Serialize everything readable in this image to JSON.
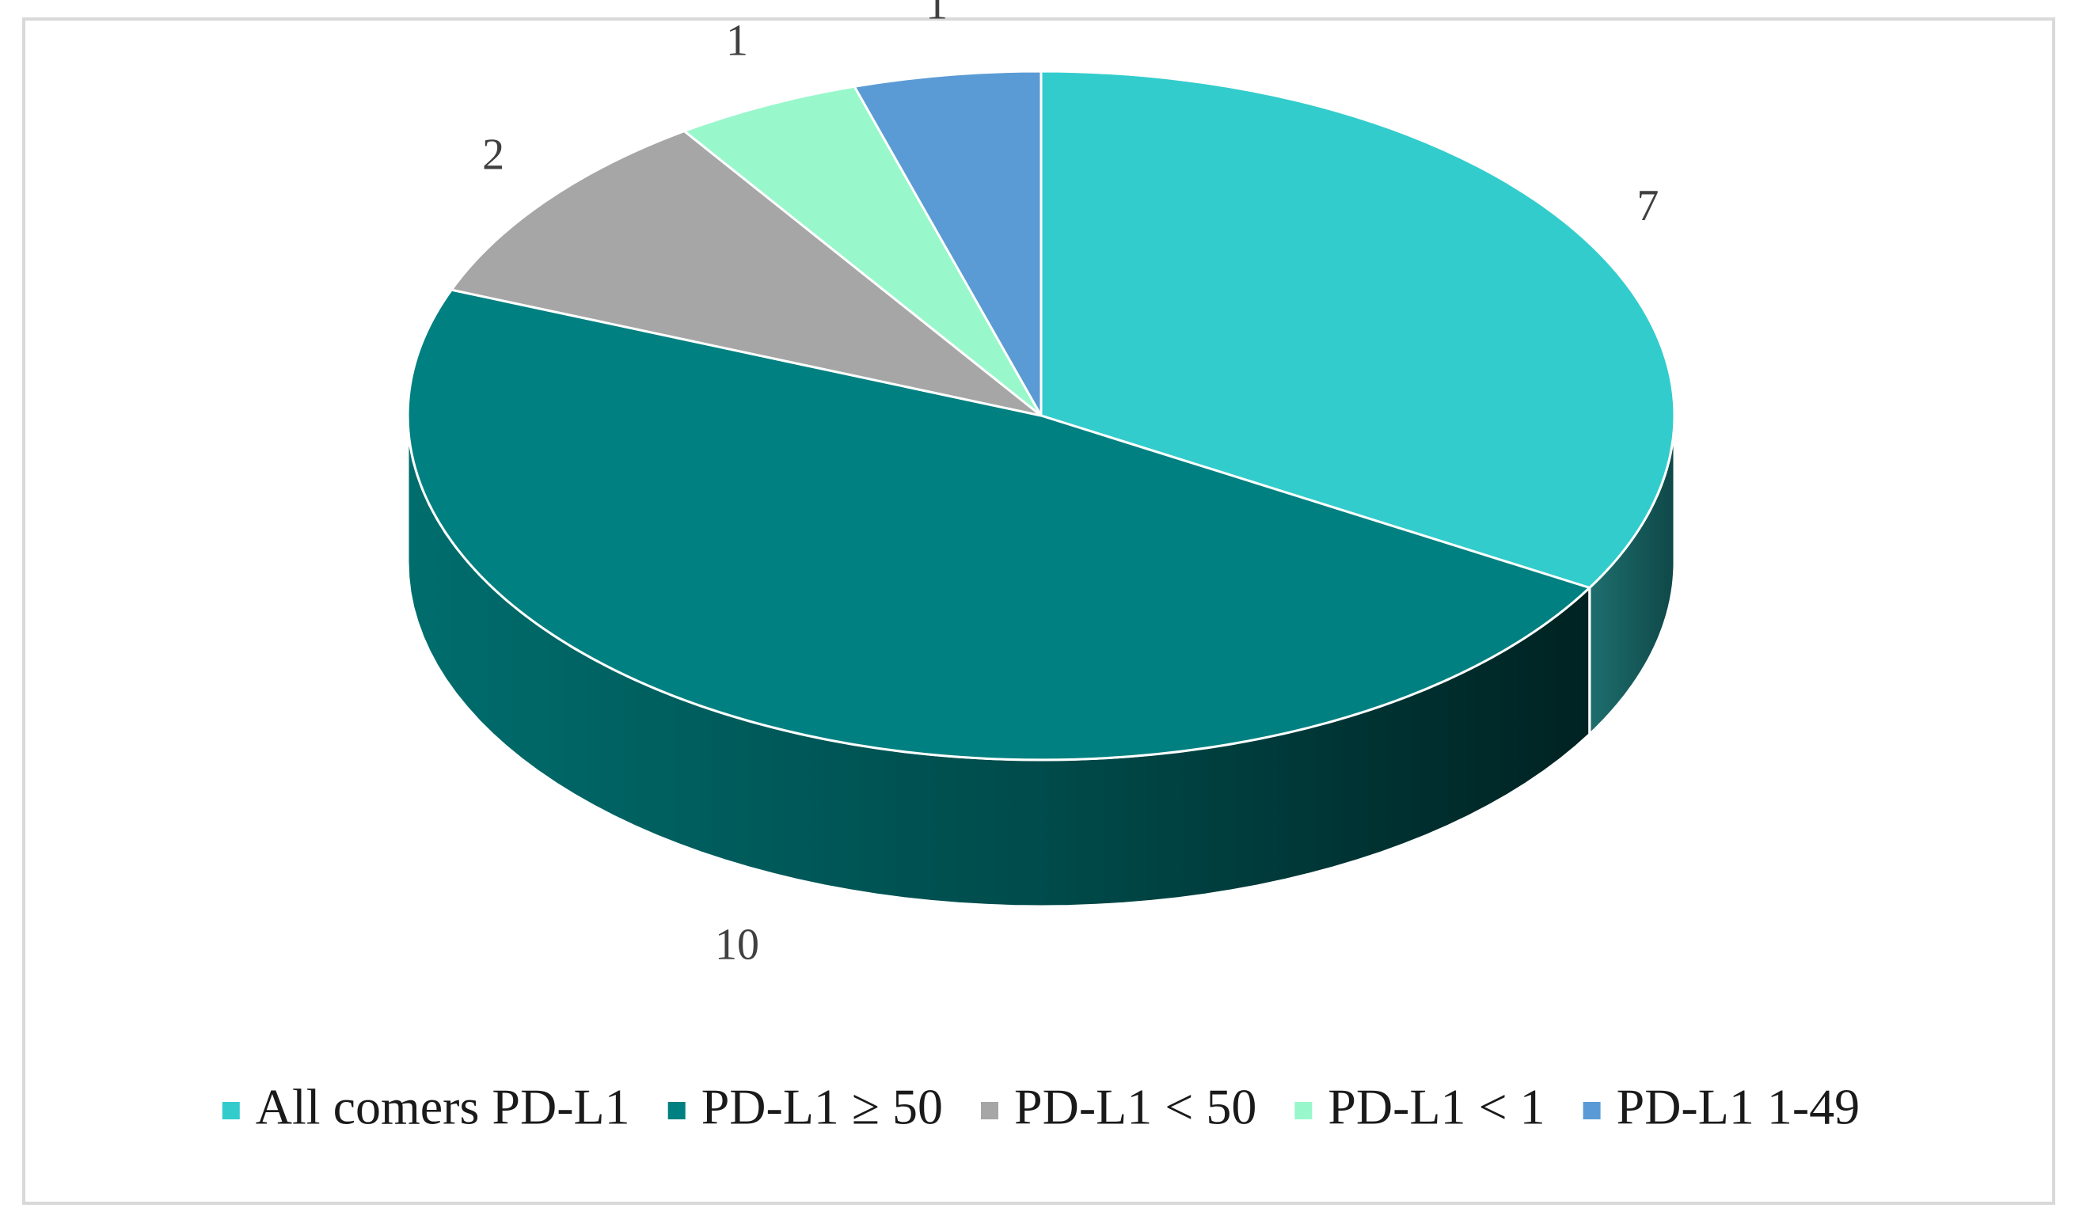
{
  "chart_data": {
    "type": "pie",
    "style": "3d",
    "legend_position": "bottom",
    "categories": [
      "All comers PD-L1",
      "PD-L1 ≥ 50",
      "PD-L1 < 50",
      "PD-L1 < 1",
      "PD-L1 1-49"
    ],
    "values": [
      7,
      10,
      2,
      1,
      1
    ],
    "labels": [
      "7",
      "10",
      "2",
      "1",
      "1"
    ],
    "colors": [
      "#33CCCC",
      "#008080",
      "#A6A6A6",
      "#99F7CC",
      "#5B9BD5"
    ]
  }
}
